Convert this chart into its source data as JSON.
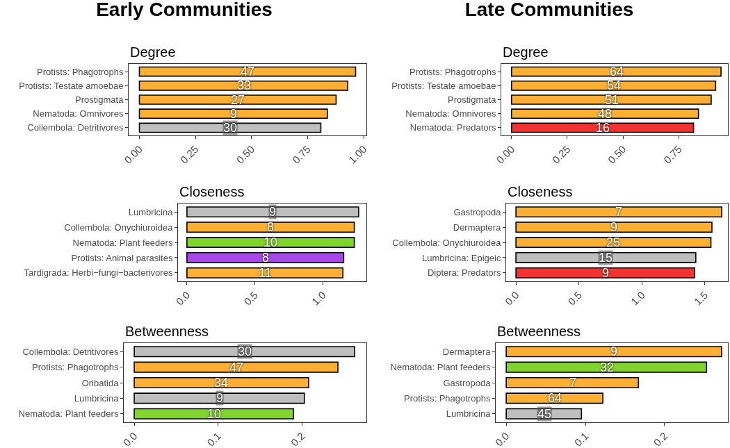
{
  "chart_data": [
    {
      "type": "bar",
      "orientation": "horizontal",
      "title": "Early Communities",
      "subtitle": "Degree",
      "categories": [
        "Protists: Phagotrophs",
        "Protists: Testate amoebae",
        "Prostigmata",
        "Nematoda: Omnivores",
        "Collembola: Detritivores"
      ],
      "values": [
        0.964,
        0.929,
        0.877,
        0.838,
        0.809
      ],
      "colors": [
        "#fbb034",
        "#fbb034",
        "#fbb034",
        "#fbb034",
        "#bebebe"
      ],
      "annotations": [
        {
          "text": "47",
          "x": 0.482,
          "y": "Protists: Phagotrophs"
        },
        {
          "text": "33",
          "x": 0.465,
          "y": "Protists: Testate amoebae"
        },
        {
          "text": "27",
          "x": 0.439,
          "y": "Prostigmata"
        },
        {
          "text": "9",
          "x": 0.419,
          "y": "Nematoda: Omnivores"
        },
        {
          "text": "30",
          "x": 0.405,
          "y": "Collembola: Detritivores"
        }
      ],
      "xlim": [
        -0.048,
        1.012
      ],
      "xticks": [
        {
          "value": 0,
          "label": "0.00"
        },
        {
          "value": 0.25,
          "label": "0.25"
        },
        {
          "value": 0.5,
          "label": "0.50"
        },
        {
          "value": 0.75,
          "label": "0.75"
        },
        {
          "value": 1,
          "label": "1.00"
        }
      ]
    },
    {
      "type": "bar",
      "orientation": "horizontal",
      "title": "Late Communities",
      "subtitle": "Degree",
      "categories": [
        "Protists: Phagotrophs",
        "Protists: Testate amoebae",
        "Prostigmata",
        "Nematoda: Omnivores",
        "Nematoda: Predators"
      ],
      "values": [
        0.939,
        0.915,
        0.895,
        0.838,
        0.816
      ],
      "colors": [
        "#fbb034",
        "#fbb034",
        "#fbb034",
        "#fbb034",
        "#f53232"
      ],
      "annotations": [
        {
          "text": "64",
          "x": 0.47,
          "y": "Protists: Phagotrophs"
        },
        {
          "text": "54",
          "x": 0.458,
          "y": "Protists: Testate amoebae"
        },
        {
          "text": "51",
          "x": 0.448,
          "y": "Prostigmata"
        },
        {
          "text": "48",
          "x": 0.419,
          "y": "Nematoda: Omnivores"
        },
        {
          "text": "16",
          "x": 0.408,
          "y": "Nematoda: Predators"
        }
      ],
      "xlim": [
        -0.046,
        0.97
      ],
      "xticks": [
        {
          "value": 0,
          "label": "0.00"
        },
        {
          "value": 0.25,
          "label": "0.25"
        },
        {
          "value": 0.5,
          "label": "0.50"
        },
        {
          "value": 0.75,
          "label": "0.75"
        }
      ]
    },
    {
      "type": "bar",
      "orientation": "horizontal",
      "subtitle": "Closeness",
      "categories": [
        "Lumbricina",
        "Collembola: Onychiuroidea",
        "Nematoda: Plant feeders",
        "Protists: Animal parasites",
        "Tardigrada: Herbi−fungi−bacterivores"
      ],
      "values": [
        1.264,
        1.232,
        1.232,
        1.154,
        1.148
      ],
      "colors": [
        "#bebebe",
        "#fbb034",
        "#80d42c",
        "#a848e8",
        "#fbb034"
      ],
      "annotations": [
        {
          "text": "9",
          "x": 0.632,
          "y": "Lumbricina"
        },
        {
          "text": "8",
          "x": 0.616,
          "y": "Collembola: Onychiuroidea"
        },
        {
          "text": "10",
          "x": 0.616,
          "y": "Nematoda: Plant feeders"
        },
        {
          "text": "8",
          "x": 0.577,
          "y": "Protists: Animal parasites"
        },
        {
          "text": "11",
          "x": 0.574,
          "y": "Tardigrada: Herbi−fungi−bacterivores"
        }
      ],
      "xlim": [
        -0.066,
        1.321
      ],
      "xticks": [
        {
          "value": 0,
          "label": "0.0"
        },
        0.5,
        {
          "value": 1,
          "label": "1.0"
        }
      ]
    },
    {
      "type": "bar",
      "orientation": "horizontal",
      "subtitle": "Closeness",
      "categories": [
        "Gastropoda",
        "Dermaptera",
        "Collembola: Onychiuroidea",
        "Lumbricina: Epigeic",
        "Diptera: Predators"
      ],
      "values": [
        1.634,
        1.556,
        1.548,
        1.428,
        1.419
      ],
      "colors": [
        "#fbb034",
        "#fbb034",
        "#fbb034",
        "#bebebe",
        "#f53232"
      ],
      "annotations": [
        {
          "text": "7",
          "x": 0.817,
          "y": "Gastropoda"
        },
        {
          "text": "9",
          "x": 0.778,
          "y": "Dermaptera"
        },
        {
          "text": "25",
          "x": 0.774,
          "y": "Collembola: Onychiuroidea"
        },
        {
          "text": "15",
          "x": 0.714,
          "y": "Lumbricina: Epigeic"
        },
        {
          "text": "9",
          "x": 0.71,
          "y": "Diptera: Predators"
        }
      ],
      "xlim": [
        -0.078,
        1.683
      ],
      "xticks": [
        {
          "value": 0,
          "label": "0.0"
        },
        0.5,
        {
          "value": 1,
          "label": "1.0"
        },
        1.5
      ]
    },
    {
      "type": "bar",
      "orientation": "horizontal",
      "subtitle": "Betweenness",
      "categories": [
        "Collembola: Detritivores",
        "Protists: Phagotrophs",
        "Oribatida",
        "Lumbricina",
        "Nematoda: Plant feeders"
      ],
      "values": [
        0.263,
        0.243,
        0.208,
        0.203,
        0.19
      ],
      "colors": [
        "#bebebe",
        "#fbb034",
        "#fbb034",
        "#bebebe",
        "#80d42c"
      ],
      "annotations": [
        {
          "text": "30",
          "x": 0.132,
          "y": "Collembola: Detritivores"
        },
        {
          "text": "47",
          "x": 0.122,
          "y": "Protists: Phagotrophs"
        },
        {
          "text": "34",
          "x": 0.104,
          "y": "Oribatida"
        },
        {
          "text": "9",
          "x": 0.102,
          "y": "Lumbricina"
        },
        {
          "text": "10",
          "x": 0.095,
          "y": "Nematoda: Plant feeders"
        }
      ],
      "xlim": [
        -0.0125,
        0.277
      ],
      "xticks": [
        {
          "value": 0,
          "label": "0.0"
        },
        0.1,
        0.2
      ]
    },
    {
      "type": "bar",
      "orientation": "horizontal",
      "subtitle": "Betweenness",
      "categories": [
        "Dermaptera",
        "Nematoda: Plant feeders",
        "Gastropoda",
        "Protists: Phagotrophs",
        "Lumbricina"
      ],
      "values": [
        0.272,
        0.253,
        0.167,
        0.122,
        0.095
      ],
      "colors": [
        "#fbb034",
        "#80d42c",
        "#fbb034",
        "#fbb034",
        "#bebebe"
      ],
      "annotations": [
        {
          "text": "9",
          "x": 0.136,
          "y": "Dermaptera"
        },
        {
          "text": "32",
          "x": 0.127,
          "y": "Nematoda: Plant feeders"
        },
        {
          "text": "7",
          "x": 0.084,
          "y": "Gastropoda"
        },
        {
          "text": "64",
          "x": 0.061,
          "y": "Protists: Phagotrophs"
        },
        {
          "text": "45",
          "x": 0.048,
          "y": "Lumbricina"
        }
      ],
      "xlim": [
        -0.0133,
        0.28
      ],
      "xticks": [
        {
          "value": 0,
          "label": "0.0"
        },
        0.1,
        0.2
      ]
    }
  ]
}
